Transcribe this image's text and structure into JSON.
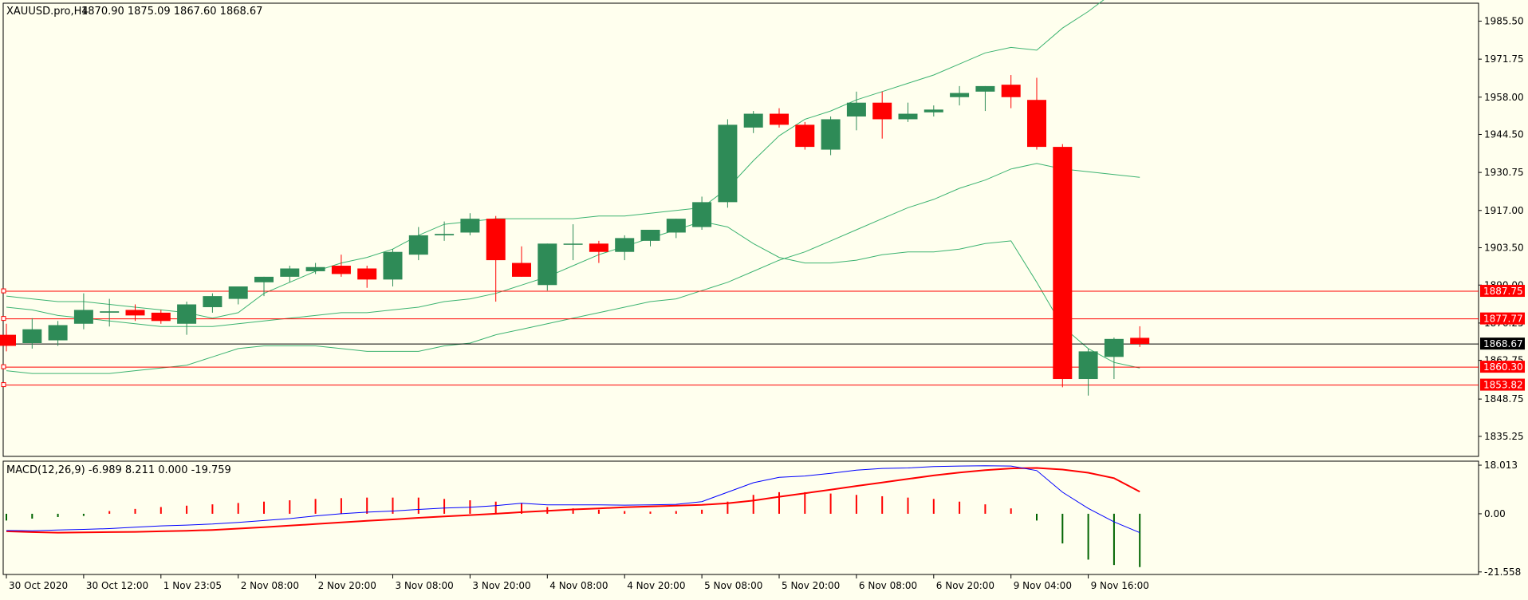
{
  "header": {
    "symbol": "XAUUSD.pro,H4",
    "ohlc": "1870.90 1875.09 1867.60 1868.67"
  },
  "macd": {
    "label": "MACD(12,26,9) -6.989 8.211 0.000 -19.759",
    "ticks": [
      "18.013",
      "0.00",
      "-21.558"
    ],
    "tick_values": [
      18.013,
      0,
      -21.558
    ],
    "range": [
      -22.5,
      19.5
    ],
    "main_line": [
      -6.2,
      -6.3,
      -6.0,
      -5.8,
      -5.5,
      -5.0,
      -4.5,
      -4.2,
      -3.8,
      -3.2,
      -2.5,
      -1.8,
      -0.8,
      0.0,
      0.6,
      1.0,
      1.6,
      2.1,
      2.4,
      3.0,
      3.9,
      3.3,
      3.3,
      3.3,
      3.2,
      3.3,
      3.5,
      4.5,
      8.0,
      11.5,
      13.5,
      14.0,
      15.0,
      16.2,
      16.8,
      17.0,
      17.5,
      17.7,
      17.8,
      17.7,
      16.0,
      8.0,
      2.0,
      -3.0,
      -6.989
    ],
    "signal_line": [
      -6.5,
      -6.8,
      -7.0,
      -6.9,
      -6.8,
      -6.7,
      -6.5,
      -6.3,
      -6.0,
      -5.5,
      -5.0,
      -4.4,
      -3.8,
      -3.2,
      -2.6,
      -2.1,
      -1.5,
      -1.0,
      -0.5,
      0.0,
      0.6,
      1.1,
      1.6,
      2.0,
      2.4,
      2.7,
      3.0,
      3.3,
      3.9,
      4.9,
      6.3,
      7.6,
      8.9,
      10.3,
      11.6,
      12.9,
      14.2,
      15.3,
      16.2,
      16.8,
      17.0,
      16.4,
      15.2,
      13.2,
      8.211
    ],
    "histogram": [
      -2.5,
      -1.8,
      -1.2,
      -0.8,
      1.0,
      1.8,
      2.5,
      3.0,
      3.5,
      4.0,
      4.5,
      5.0,
      5.5,
      5.8,
      6.0,
      6.0,
      6.0,
      5.5,
      5.0,
      4.5,
      4.0,
      2.5,
      2.0,
      1.5,
      1.0,
      0.8,
      1.0,
      1.5,
      4.5,
      7.0,
      8.0,
      8.0,
      7.5,
      7.0,
      6.5,
      6.0,
      5.5,
      4.5,
      3.5,
      2.0,
      -2.5,
      -11.0,
      -17.0,
      -19.0,
      -19.759
    ],
    "colors": {
      "main": "#0000ff",
      "signal": "#ff0000",
      "hist_pos": "#ff0000",
      "hist_neg": "#006400"
    }
  },
  "chart_data": {
    "type": "candlestick",
    "price_range": [
      1828,
      1992
    ],
    "y_ticks": [
      1985.5,
      1971.75,
      1958.0,
      1944.5,
      1930.75,
      1917.0,
      1903.5,
      1890.0,
      1876.25,
      1862.75,
      1848.75,
      1835.25
    ],
    "y_tick_labels": [
      "1985.50",
      "1971.75",
      "1958.00",
      "1944.50",
      "1930.75",
      "1917.00",
      "1903.50",
      "1890.00",
      "1876.25",
      "1862.75",
      "1848.75",
      "1835.25"
    ],
    "x_labels": [
      "30 Oct 2020",
      "30 Oct 12:00",
      "1 Nov 23:05",
      "2 Nov 08:00",
      "2 Nov 20:00",
      "3 Nov 08:00",
      "3 Nov 20:00",
      "4 Nov 08:00",
      "4 Nov 20:00",
      "5 Nov 08:00",
      "5 Nov 20:00",
      "6 Nov 08:00",
      "6 Nov 20:00",
      "9 Nov 04:00",
      "9 Nov 16:00"
    ],
    "x_label_bars": [
      0,
      3,
      6,
      9,
      12,
      15,
      18,
      21,
      24,
      27,
      30,
      33,
      36,
      39,
      42
    ],
    "candles": [
      {
        "o": 1872.0,
        "h": 1876.0,
        "l": 1866.0,
        "c": 1868.0
      },
      {
        "o": 1869.0,
        "h": 1878.0,
        "l": 1867.0,
        "c": 1874.0
      },
      {
        "o": 1870.0,
        "h": 1877.0,
        "l": 1868.0,
        "c": 1875.5
      },
      {
        "o": 1876.0,
        "h": 1887.0,
        "l": 1874.0,
        "c": 1881.0
      },
      {
        "o": 1880.0,
        "h": 1885.0,
        "l": 1875.0,
        "c": 1880.5
      },
      {
        "o": 1881.0,
        "h": 1883.0,
        "l": 1877.0,
        "c": 1879.0
      },
      {
        "o": 1880.0,
        "h": 1881.0,
        "l": 1876.0,
        "c": 1877.0
      },
      {
        "o": 1876.0,
        "h": 1884.0,
        "l": 1872.0,
        "c": 1883.0
      },
      {
        "o": 1882.0,
        "h": 1887.0,
        "l": 1880.0,
        "c": 1886.0
      },
      {
        "o": 1885.0,
        "h": 1889.0,
        "l": 1883.0,
        "c": 1889.5
      },
      {
        "o": 1891.0,
        "h": 1893.0,
        "l": 1886.0,
        "c": 1893.0
      },
      {
        "o": 1893.0,
        "h": 1897.0,
        "l": 1891.0,
        "c": 1896.0
      },
      {
        "o": 1895.0,
        "h": 1898.0,
        "l": 1894.0,
        "c": 1896.5
      },
      {
        "o": 1897.0,
        "h": 1901.0,
        "l": 1893.0,
        "c": 1894.0
      },
      {
        "o": 1896.0,
        "h": 1897.0,
        "l": 1889.0,
        "c": 1892.0
      },
      {
        "o": 1892.0,
        "h": 1903.0,
        "l": 1889.5,
        "c": 1902.0
      },
      {
        "o": 1901.0,
        "h": 1911.0,
        "l": 1899.0,
        "c": 1908.0
      },
      {
        "o": 1908.0,
        "h": 1913.0,
        "l": 1906.0,
        "c": 1908.5
      },
      {
        "o": 1909.0,
        "h": 1916.0,
        "l": 1908.0,
        "c": 1914.0
      },
      {
        "o": 1914.0,
        "h": 1915.0,
        "l": 1884.0,
        "c": 1899.0
      },
      {
        "o": 1898.0,
        "h": 1904.0,
        "l": 1893.0,
        "c": 1893.0
      },
      {
        "o": 1890.0,
        "h": 1905.0,
        "l": 1888.0,
        "c": 1905.0
      },
      {
        "o": 1905.0,
        "h": 1912.0,
        "l": 1899.0,
        "c": 1905.0
      },
      {
        "o": 1905.0,
        "h": 1906.0,
        "l": 1898.0,
        "c": 1902.0
      },
      {
        "o": 1902.0,
        "h": 1908.0,
        "l": 1899.0,
        "c": 1907.0
      },
      {
        "o": 1906.0,
        "h": 1910.0,
        "l": 1904.0,
        "c": 1910.0
      },
      {
        "o": 1909.0,
        "h": 1914.0,
        "l": 1907.0,
        "c": 1914.0
      },
      {
        "o": 1911.0,
        "h": 1922.0,
        "l": 1910.0,
        "c": 1920.0
      },
      {
        "o": 1920.0,
        "h": 1950.0,
        "l": 1918.0,
        "c": 1948.0
      },
      {
        "o": 1947.0,
        "h": 1953.0,
        "l": 1945.0,
        "c": 1952.0
      },
      {
        "o": 1952.0,
        "h": 1954.0,
        "l": 1947.0,
        "c": 1948.0
      },
      {
        "o": 1948.0,
        "h": 1949.0,
        "l": 1939.0,
        "c": 1940.0
      },
      {
        "o": 1939.0,
        "h": 1951.0,
        "l": 1937.0,
        "c": 1950.0
      },
      {
        "o": 1951.0,
        "h": 1960.0,
        "l": 1946.0,
        "c": 1956.0
      },
      {
        "o": 1956.0,
        "h": 1960.0,
        "l": 1943.0,
        "c": 1950.0
      },
      {
        "o": 1950.0,
        "h": 1956.0,
        "l": 1949.0,
        "c": 1952.0
      },
      {
        "o": 1952.5,
        "h": 1955.0,
        "l": 1951.0,
        "c": 1953.5
      },
      {
        "o": 1958.0,
        "h": 1962.0,
        "l": 1955.0,
        "c": 1959.5
      },
      {
        "o": 1960.0,
        "h": 1962.0,
        "l": 1953.0,
        "c": 1962.0
      },
      {
        "o": 1962.5,
        "h": 1966.0,
        "l": 1954.0,
        "c": 1958.0
      },
      {
        "o": 1957.0,
        "h": 1965.0,
        "l": 1939.0,
        "c": 1940.0
      },
      {
        "o": 1940.0,
        "h": 1941.0,
        "l": 1853.0,
        "c": 1856.0
      },
      {
        "o": 1856.0,
        "h": 1867.0,
        "l": 1850.0,
        "c": 1866.0
      },
      {
        "o": 1864.0,
        "h": 1871.0,
        "l": 1856.0,
        "c": 1870.5
      },
      {
        "o": 1870.9,
        "h": 1875.09,
        "l": 1867.6,
        "c": 1868.67
      }
    ],
    "bollinger_upper": [
      1886,
      1885,
      1884,
      1884,
      1883,
      1882,
      1881,
      1880,
      1878,
      1880,
      1887,
      1891,
      1895,
      1898,
      1900,
      1903,
      1908,
      1912,
      1913,
      1914,
      1914,
      1914,
      1914,
      1915,
      1915,
      1916,
      1917,
      1918,
      1925,
      1935,
      1944,
      1950,
      1953,
      1957,
      1960,
      1963,
      1966,
      1970,
      1974,
      1976,
      1975,
      1983,
      1989,
      1996,
      2003
    ],
    "bollinger_middle": [
      1859,
      1858,
      1858,
      1858,
      1858,
      1859,
      1860,
      1861,
      1864,
      1867,
      1868,
      1868,
      1868,
      1867,
      1866,
      1866,
      1866,
      1868,
      1869,
      1872,
      1874,
      1876,
      1878,
      1880,
      1882,
      1884,
      1885,
      1888,
      1891,
      1895,
      1899,
      1902,
      1906,
      1910,
      1914,
      1918,
      1921,
      1925,
      1928,
      1932,
      1934,
      1932,
      1931,
      1930,
      1929
    ],
    "bollinger_lower": [
      1882,
      1881,
      1879,
      1878,
      1877,
      1876,
      1875,
      1875,
      1875,
      1876,
      1877,
      1878,
      1879,
      1880,
      1880,
      1881,
      1882,
      1884,
      1885,
      1887,
      1890,
      1893,
      1897,
      1901,
      1904,
      1907,
      1910,
      1913,
      1911,
      1905,
      1900,
      1898,
      1898,
      1899,
      1901,
      1902,
      1902,
      1903,
      1905,
      1906,
      1891,
      1875,
      1867,
      1862,
      1860
    ],
    "horizontal_levels": [
      {
        "value": 1887.75,
        "label": "1887.75",
        "color": "#ff0000"
      },
      {
        "value": 1877.77,
        "label": "1877.77",
        "color": "#ff0000"
      },
      {
        "value": 1860.3,
        "label": "1860.30",
        "color": "#ff0000"
      },
      {
        "value": 1853.82,
        "label": "1853.82",
        "color": "#ff0000"
      }
    ],
    "current_price": {
      "value": 1868.67,
      "label": "1868.67"
    },
    "colors": {
      "bull": "#2e8b57",
      "bear": "#ff0000",
      "bollinger": "#3cb371",
      "background": "#ffffee",
      "axis": "#000000"
    }
  }
}
